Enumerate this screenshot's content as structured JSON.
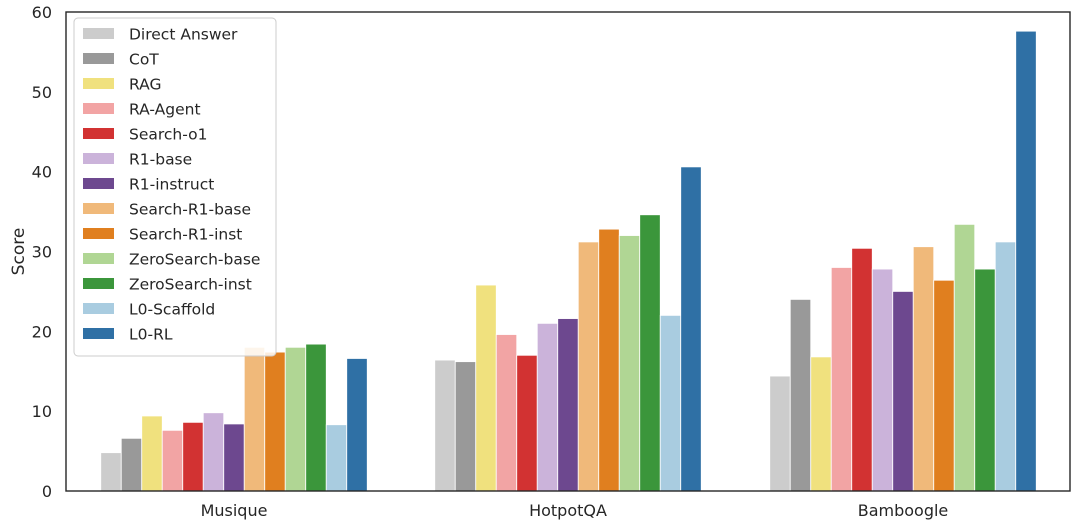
{
  "chart_data": {
    "type": "bar",
    "xlabel": "",
    "ylabel": "Score",
    "ylim": [
      0,
      60
    ],
    "yticks": [
      0,
      10,
      20,
      30,
      40,
      50,
      60
    ],
    "grid": false,
    "legend_placement": "top-left",
    "categories": [
      "Musique",
      "HotpotQA",
      "Bamboogle"
    ],
    "series": [
      {
        "name": "Direct Answer",
        "color": "#cccccc",
        "values": [
          4.8,
          16.4,
          14.4
        ]
      },
      {
        "name": "CoT",
        "color": "#999999",
        "values": [
          6.6,
          16.2,
          24.0
        ]
      },
      {
        "name": "RAG",
        "color": "#f0e17e",
        "values": [
          9.4,
          25.8,
          16.8
        ]
      },
      {
        "name": "RA-Agent",
        "color": "#f2a4a4",
        "values": [
          7.6,
          19.6,
          28.0
        ]
      },
      {
        "name": "Search-o1",
        "color": "#d23232",
        "values": [
          8.6,
          17.0,
          30.4
        ]
      },
      {
        "name": "R1-base",
        "color": "#cbb3da",
        "values": [
          9.8,
          21.0,
          27.8
        ]
      },
      {
        "name": "R1-instruct",
        "color": "#6d488f",
        "values": [
          8.4,
          21.6,
          25.0
        ]
      },
      {
        "name": "Search-R1-base",
        "color": "#f0b97a",
        "values": [
          18.0,
          31.2,
          30.6
        ]
      },
      {
        "name": "Search-R1-inst",
        "color": "#e07f1f",
        "values": [
          17.4,
          32.8,
          26.4
        ]
      },
      {
        "name": "ZeroSearch-base",
        "color": "#b0d694",
        "values": [
          18.0,
          32.0,
          33.4
        ]
      },
      {
        "name": "ZeroSearch-inst",
        "color": "#3b963b",
        "values": [
          18.4,
          34.6,
          27.8
        ]
      },
      {
        "name": "L0-Scaffold",
        "color": "#a9cce0",
        "values": [
          8.3,
          22.0,
          31.2
        ]
      },
      {
        "name": "L0-RL",
        "color": "#2f70a5",
        "values": [
          16.6,
          40.6,
          57.6
        ]
      }
    ]
  }
}
